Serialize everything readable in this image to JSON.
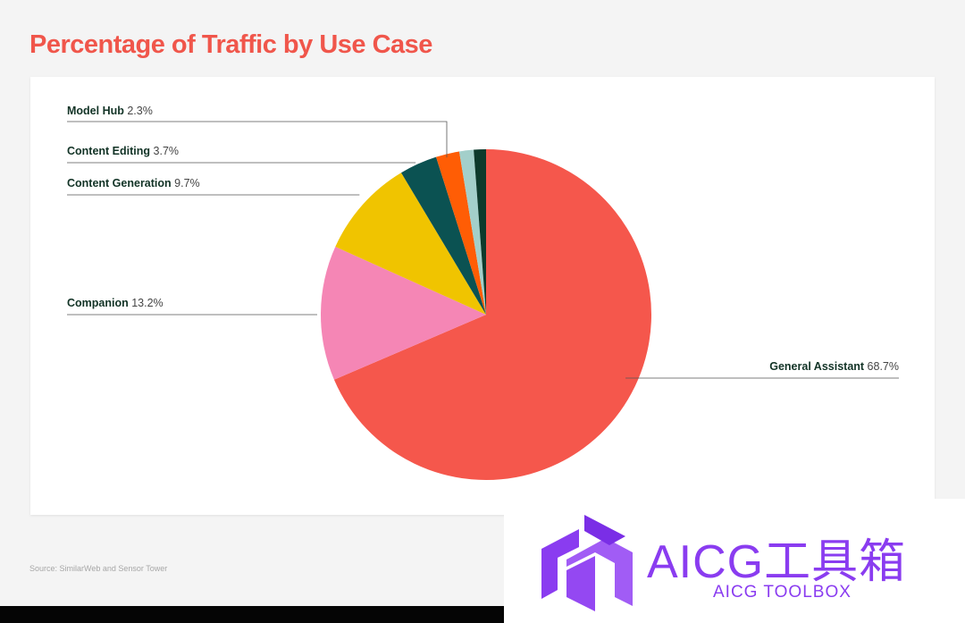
{
  "title": "Percentage of Traffic by Use Case",
  "source": "Source: SimilarWeb and Sensor Tower",
  "colors": {
    "title": "#f0564b",
    "label_name": "#123326",
    "label_value": "#444444",
    "leader": "#555555"
  },
  "chart_data": {
    "type": "pie",
    "title": "Percentage of Traffic by Use Case",
    "slices": [
      {
        "name": "General Assistant",
        "value": 68.7,
        "display": "68.7%",
        "color": "#f5574c",
        "labeled": true
      },
      {
        "name": "Companion",
        "value": 13.2,
        "display": "13.2%",
        "color": "#f586b5",
        "labeled": true
      },
      {
        "name": "Content Generation",
        "value": 9.7,
        "display": "9.7%",
        "color": "#f0c400",
        "labeled": true
      },
      {
        "name": "Content Editing",
        "value": 3.7,
        "display": "3.7%",
        "color": "#0b5252",
        "labeled": true
      },
      {
        "name": "Model Hub",
        "value": 2.3,
        "display": "2.3%",
        "color": "#ff5d05",
        "labeled": true
      },
      {
        "name": "",
        "value": 1.4,
        "display": "",
        "color": "#a3cfca",
        "labeled": false
      },
      {
        "name": "",
        "value": 1.2,
        "display": "",
        "color": "#0d3a2c",
        "labeled": false
      }
    ]
  },
  "watermark": {
    "name": "AICG工具箱",
    "sub": "AICG TOOLBOX"
  }
}
